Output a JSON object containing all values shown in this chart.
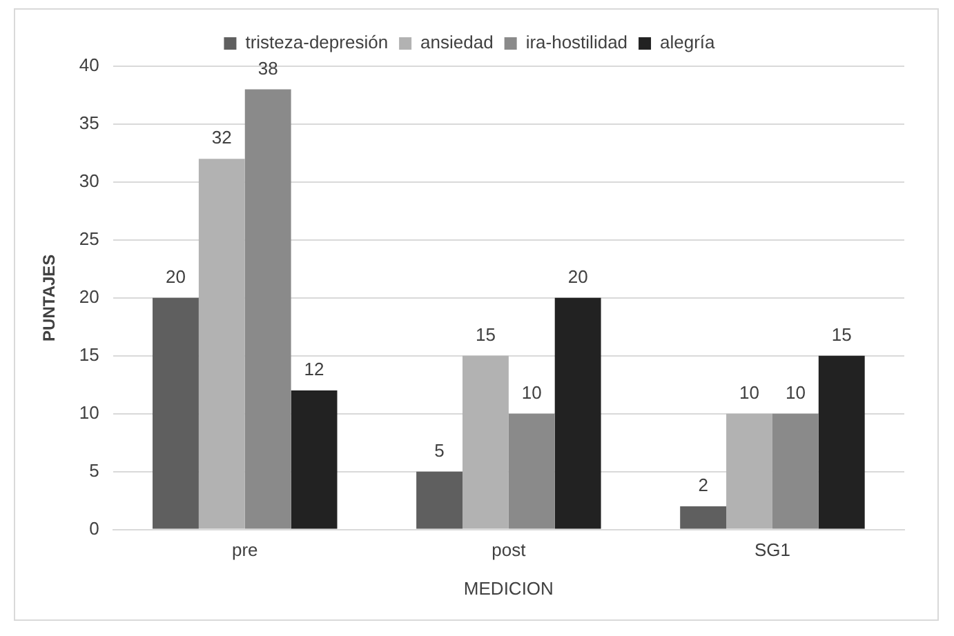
{
  "chart_data": {
    "type": "bar",
    "xlabel": "MEDICION",
    "ylabel": "PUNTAJES",
    "categories": [
      "pre",
      "post",
      "SG1"
    ],
    "series": [
      {
        "name": "tristeza-depresión",
        "color": "#5f5f5f",
        "values": [
          20,
          5,
          2
        ]
      },
      {
        "name": "ansiedad",
        "color": "#b2b2b2",
        "values": [
          32,
          15,
          10
        ]
      },
      {
        "name": "ira-hostilidad",
        "color": "#8a8a8a",
        "values": [
          38,
          10,
          10
        ]
      },
      {
        "name": "alegría",
        "color": "#222222",
        "values": [
          12,
          20,
          15
        ]
      }
    ],
    "ylim": [
      0,
      40
    ],
    "yticks": [
      0,
      5,
      10,
      15,
      20,
      25,
      30,
      35,
      40
    ],
    "grid": "y",
    "legend": "top",
    "data_labels": true
  }
}
